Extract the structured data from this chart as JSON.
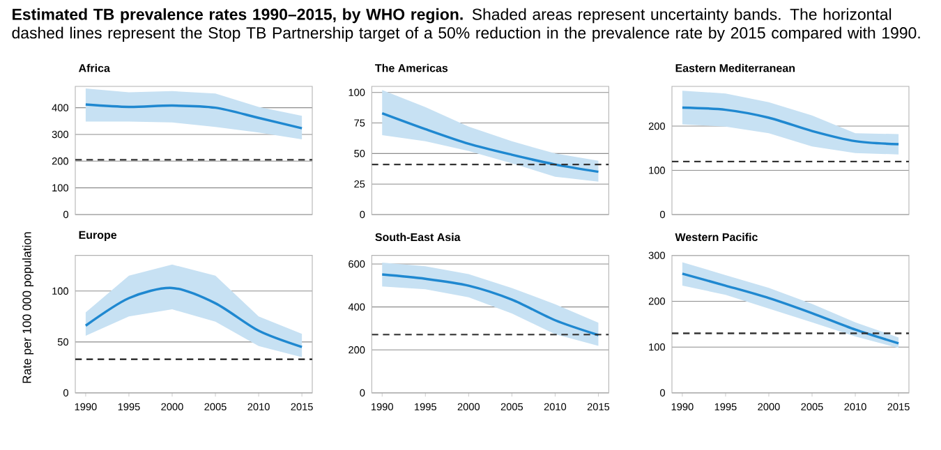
{
  "chart_data": [
    {
      "type": "line",
      "title": "Africa",
      "annotations": [
        "**Estimated TB prevalence rates 1990–2015, by WHO region.** Shaded areas represent uncertainty bands. The horizontal dashed lines represent the Stop TB Partnership target of a 50% reduction in the prevalence rate by 2015 compared with 1990."
      ],
      "x": [
        1990,
        1995,
        2000,
        2005,
        2010,
        2015
      ],
      "xlim": [
        1988.8,
        2016.2
      ],
      "xticks": [
        1990,
        1995,
        2000,
        2005,
        2010,
        2015
      ],
      "ylim": [
        0,
        480
      ],
      "yticks": [
        0,
        100,
        200,
        300,
        400
      ],
      "grid": "y",
      "tick_labels": "y",
      "series": [
        {
          "color": "#1f88d0",
          "values": [
            412,
            403,
            408,
            400,
            362,
            323
          ],
          "lower": [
            348,
            348,
            345,
            328,
            307,
            282
          ],
          "upper": [
            472,
            458,
            462,
            453,
            403,
            370
          ]
        }
      ],
      "ref_lines": [
        {
          "axis": "y",
          "value": 205,
          "color": "#333333",
          "line_style": "dashed"
        }
      ]
    },
    {
      "type": "line",
      "title": "The Americas",
      "x": [
        1990,
        1995,
        2000,
        2005,
        2010,
        2015
      ],
      "xlim": [
        1988.8,
        2016.2
      ],
      "xticks": [
        1990,
        1995,
        2000,
        2005,
        2010,
        2015
      ],
      "ylim": [
        0,
        105
      ],
      "yticks": [
        0,
        25,
        50,
        75,
        100
      ],
      "grid": "y",
      "tick_labels": "y",
      "series": [
        {
          "color": "#1f88d0",
          "values": [
            83,
            70,
            58,
            49,
            41,
            35
          ],
          "lower": [
            65,
            60,
            52,
            42,
            31,
            27
          ],
          "upper": [
            102,
            88,
            72,
            60,
            50,
            44
          ]
        }
      ],
      "ref_lines": [
        {
          "axis": "y",
          "value": 41,
          "color": "#333333",
          "line_style": "dashed"
        }
      ]
    },
    {
      "type": "line",
      "title": "Eastern Mediterranean",
      "x": [
        1990,
        1995,
        2000,
        2005,
        2010,
        2015
      ],
      "xlim": [
        1988.8,
        2016.2
      ],
      "xticks": [
        1990,
        1995,
        2000,
        2005,
        2010,
        2015
      ],
      "ylim": [
        0,
        290
      ],
      "yticks": [
        0,
        100,
        200
      ],
      "grid": "y",
      "tick_labels": "y",
      "series": [
        {
          "color": "#1f88d0",
          "values": [
            242,
            237,
            219,
            189,
            166,
            159
          ],
          "lower": [
            204,
            199,
            184,
            154,
            139,
            136
          ],
          "upper": [
            280,
            274,
            254,
            224,
            184,
            182
          ]
        }
      ],
      "ref_lines": [
        {
          "axis": "y",
          "value": 120,
          "color": "#333333",
          "line_style": "dashed"
        }
      ]
    },
    {
      "type": "line",
      "title": "Europe",
      "ylabel": "Rate per 100 000 population",
      "x": [
        1990,
        1995,
        2000,
        2005,
        2010,
        2015
      ],
      "xlim": [
        1988.8,
        2016.2
      ],
      "xticks": [
        1990,
        1995,
        2000,
        2005,
        2010,
        2015
      ],
      "ylim": [
        0,
        135
      ],
      "yticks": [
        0,
        50,
        100
      ],
      "grid": "y",
      "series": [
        {
          "color": "#1f88d0",
          "values": [
            66,
            93,
            103,
            88,
            61,
            45
          ],
          "lower": [
            56,
            75,
            82,
            70,
            46,
            35
          ],
          "upper": [
            79,
            115,
            126,
            115,
            75,
            58
          ]
        }
      ],
      "ref_lines": [
        {
          "axis": "y",
          "value": 33,
          "color": "#333333",
          "line_style": "dashed"
        }
      ]
    },
    {
      "type": "line",
      "title": "South-East Asia",
      "x": [
        1990,
        1995,
        2000,
        2005,
        2010,
        2015
      ],
      "xlim": [
        1988.8,
        2016.2
      ],
      "xticks": [
        1990,
        1995,
        2000,
        2005,
        2010,
        2015
      ],
      "ylim": [
        0,
        640
      ],
      "yticks": [
        0,
        200,
        400,
        600
      ],
      "grid": "y",
      "series": [
        {
          "color": "#1f88d0",
          "values": [
            551,
            531,
            499,
            434,
            338,
            269
          ],
          "lower": [
            495,
            482,
            445,
            370,
            273,
            219
          ],
          "upper": [
            606,
            589,
            553,
            488,
            413,
            327
          ]
        }
      ],
      "ref_lines": [
        {
          "axis": "y",
          "value": 271,
          "color": "#333333",
          "line_style": "dashed"
        }
      ]
    },
    {
      "type": "line",
      "title": "Western Pacific",
      "x": [
        1990,
        1995,
        2000,
        2005,
        2010,
        2015
      ],
      "xlim": [
        1988.8,
        2016.2
      ],
      "xticks": [
        1990,
        1995,
        2000,
        2005,
        2010,
        2015
      ],
      "ylim": [
        0,
        300
      ],
      "yticks": [
        0,
        100,
        200,
        300
      ],
      "grid": "y",
      "series": [
        {
          "color": "#1f88d0",
          "values": [
            260,
            234,
            207,
            174,
            138,
            108
          ],
          "lower": [
            234,
            214,
            184,
            154,
            123,
            98
          ],
          "upper": [
            285,
            257,
            229,
            194,
            154,
            121
          ]
        }
      ],
      "ref_lines": [
        {
          "axis": "y",
          "value": 130,
          "color": "#333333",
          "line_style": "dashed"
        }
      ]
    }
  ]
}
